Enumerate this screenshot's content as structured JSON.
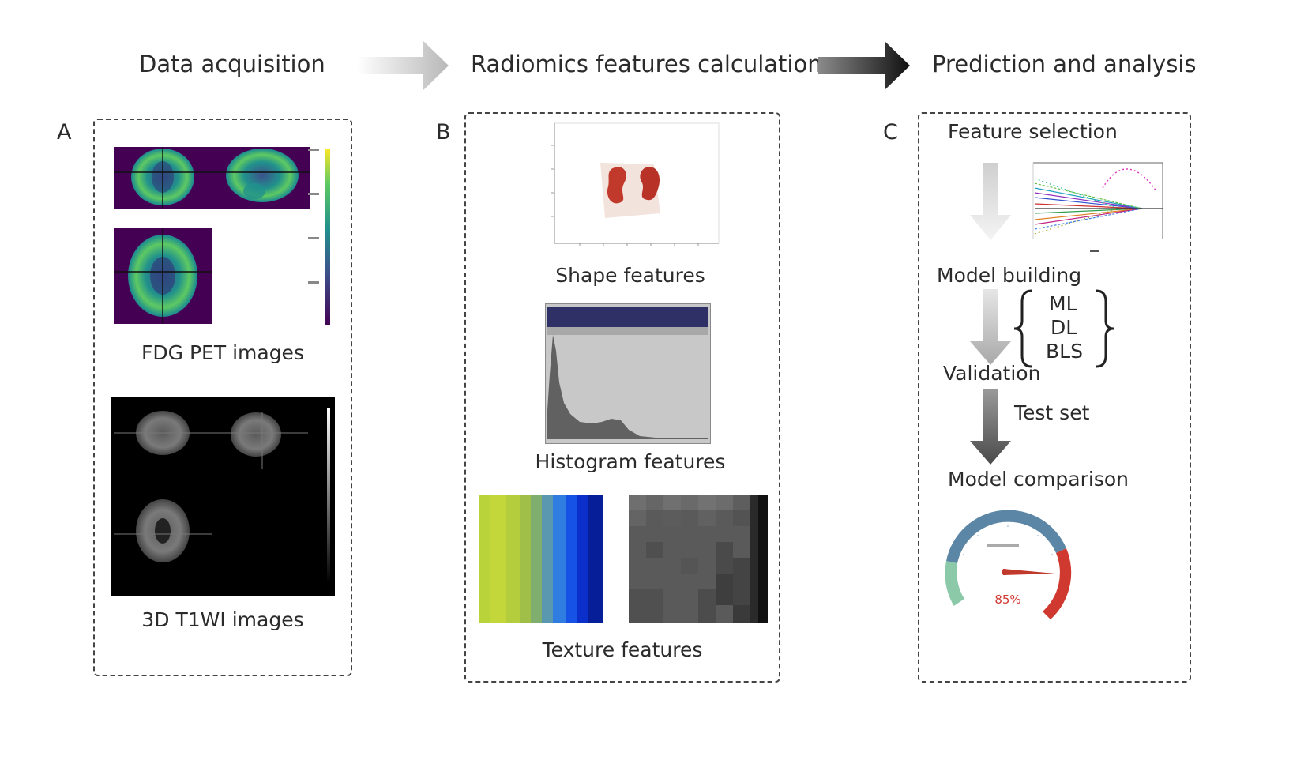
{
  "stages": {
    "stage1": "Data acquisition",
    "stage2": "Radiomics features calculation",
    "stage3": "Prediction and analysis"
  },
  "panels": {
    "a": {
      "letter": "A",
      "pet_caption": "FDG PET images",
      "t1_caption": "3D T1WI images"
    },
    "b": {
      "letter": "B",
      "shape_caption": "Shape features",
      "histogram_caption": "Histogram features",
      "texture_caption": "Texture features"
    },
    "c": {
      "letter": "C",
      "feature_selection": "Feature selection",
      "model_building": "Model building",
      "models": [
        "ML",
        "DL",
        "BLS"
      ],
      "validation": "Validation",
      "test_set": "Test set",
      "model_comparison": "Model comparison",
      "gauge_value": "85%"
    }
  },
  "colors": {
    "petColormap": [
      "#440154",
      "#3b528b",
      "#21918c",
      "#5ec962",
      "#fde725"
    ],
    "gaugeBlue": "#5b86a6",
    "gaugeRed": "#d0392f",
    "gaugeGreen": "#8cc9a8",
    "brainRed": "#c0392b"
  }
}
